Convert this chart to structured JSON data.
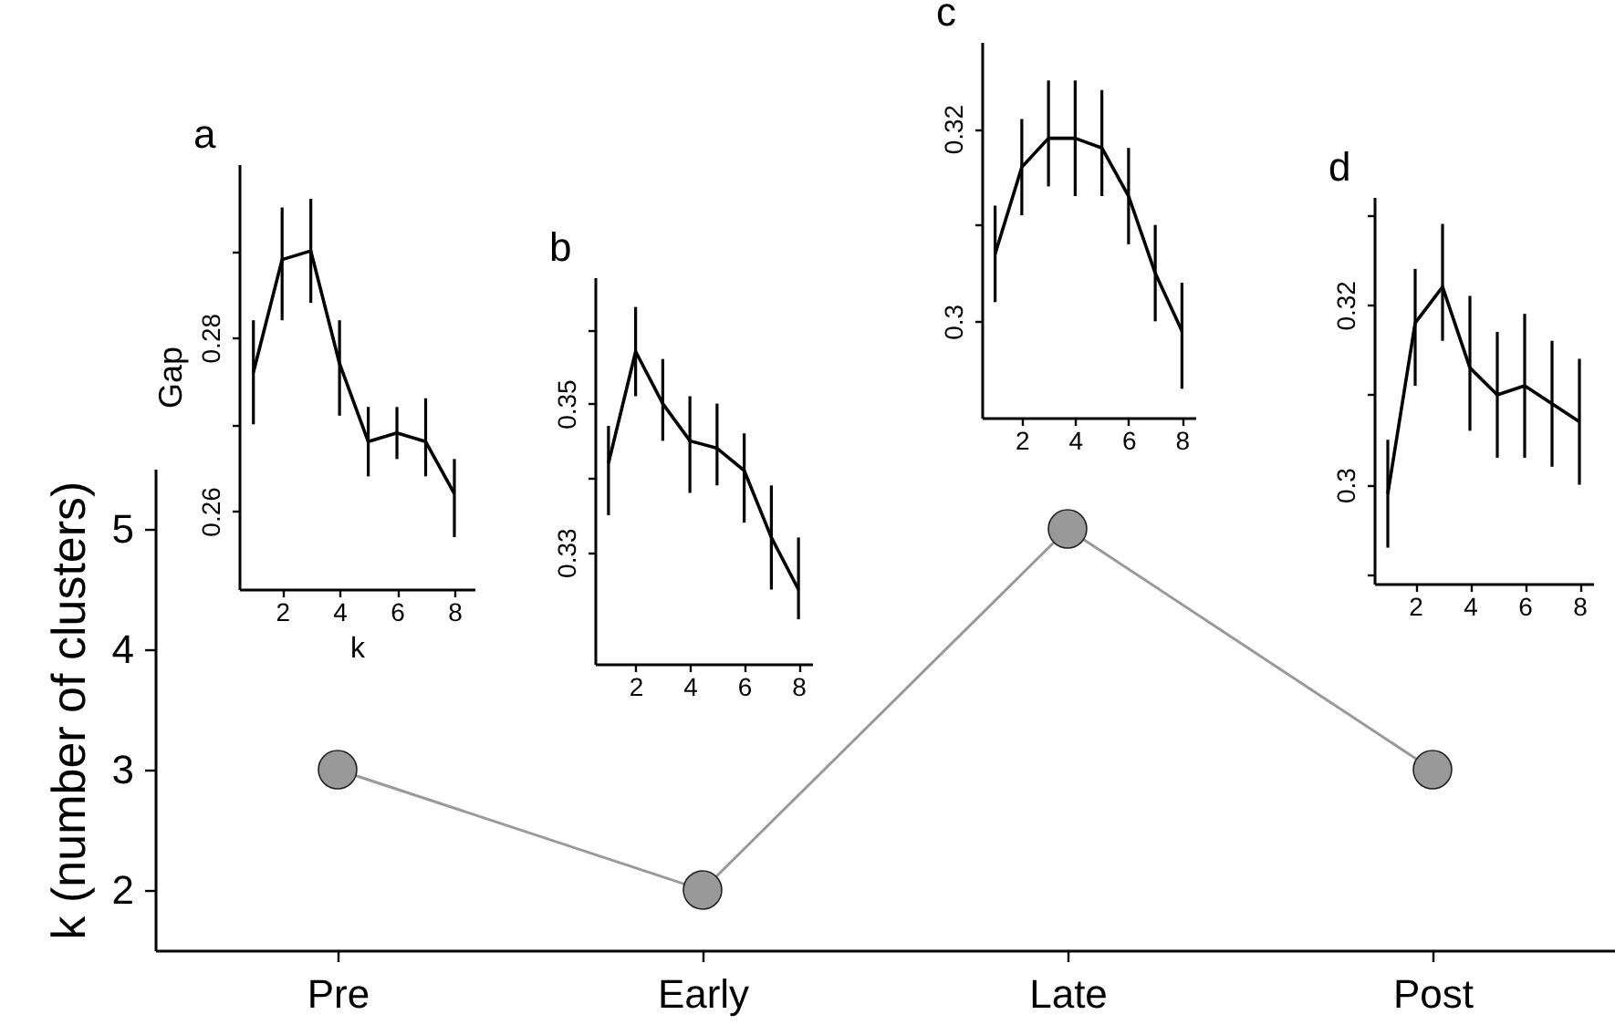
{
  "chart_data": [
    {
      "type": "line",
      "ylabel": "k (number of clusters)",
      "categories": [
        "Pre",
        "Early",
        "Late",
        "Post"
      ],
      "marker": "circle",
      "ylim": [
        1.5,
        5.5
      ],
      "yticks": [
        2,
        3,
        4,
        5
      ],
      "series": [
        {
          "color": "#999999",
          "values": [
            3,
            2,
            5,
            3
          ]
        }
      ]
    },
    {
      "type": "line",
      "title": "a",
      "xlabel": "k",
      "ylabel": "Gap",
      "x": [
        1,
        2,
        3,
        4,
        5,
        6,
        7,
        8
      ],
      "xlim": [
        0.5,
        8.7
      ],
      "xticks": [
        2,
        4,
        6,
        8
      ],
      "ylim": [
        0.251,
        0.3
      ],
      "yticks": [
        0.26,
        {
          "value": 0.27,
          "label": null
        },
        0.28,
        {
          "value": 0.29,
          "label": null
        }
      ],
      "series": [
        {
          "color": "#000000",
          "values": [
            0.276,
            0.289,
            0.29,
            0.277,
            0.268,
            0.269,
            0.268,
            0.262
          ],
          "errors": [
            [
              0.27,
              0.282
            ],
            [
              0.282,
              0.295
            ],
            [
              0.284,
              0.296
            ],
            [
              0.271,
              0.282
            ],
            [
              0.264,
              0.272
            ],
            [
              0.266,
              0.272
            ],
            [
              0.264,
              0.273
            ],
            [
              0.257,
              0.266
            ]
          ]
        }
      ]
    },
    {
      "type": "line",
      "title": "b",
      "x": [
        1,
        2,
        3,
        4,
        5,
        6,
        7,
        8
      ],
      "xlim": [
        0.5,
        8.5
      ],
      "xticks": [
        2,
        4,
        6,
        8
      ],
      "ylim": [
        0.315,
        0.367
      ],
      "yticks": [
        0.33,
        {
          "value": 0.34,
          "label": null
        },
        0.35,
        {
          "value": 0.36,
          "label": null
        }
      ],
      "series": [
        {
          "color": "#000000",
          "values": [
            0.342,
            0.357,
            0.35,
            0.345,
            0.344,
            0.341,
            0.332,
            0.325
          ],
          "errors": [
            [
              0.335,
              0.347
            ],
            [
              0.351,
              0.363
            ],
            [
              0.345,
              0.356
            ],
            [
              0.338,
              0.351
            ],
            [
              0.339,
              0.35
            ],
            [
              0.334,
              0.346
            ],
            [
              0.325,
              0.339
            ],
            [
              0.321,
              0.332
            ]
          ]
        }
      ]
    },
    {
      "type": "line",
      "title": "c",
      "x": [
        1,
        2,
        3,
        4,
        5,
        6,
        7,
        8
      ],
      "xlim": [
        0.5,
        8.5
      ],
      "xticks": [
        2,
        4,
        6,
        8
      ],
      "ylim": [
        0.29,
        0.329
      ],
      "yticks": [
        0.3,
        {
          "value": 0.31,
          "label": null
        },
        0.32
      ],
      "series": [
        {
          "color": "#000000",
          "values": [
            0.307,
            0.316,
            0.319,
            0.319,
            0.318,
            0.313,
            0.305,
            0.299
          ],
          "errors": [
            [
              0.302,
              0.312
            ],
            [
              0.311,
              0.321
            ],
            [
              0.314,
              0.325
            ],
            [
              0.313,
              0.325
            ],
            [
              0.313,
              0.324
            ],
            [
              0.308,
              0.318
            ],
            [
              0.3,
              0.31
            ],
            [
              0.293,
              0.304
            ]
          ]
        }
      ]
    },
    {
      "type": "line",
      "title": "d",
      "x": [
        1,
        2,
        3,
        4,
        5,
        6,
        7,
        8
      ],
      "xlim": [
        0.5,
        8.5
      ],
      "xticks": [
        2,
        4,
        6,
        8
      ],
      "ylim": [
        0.289,
        0.332
      ],
      "yticks": [
        {
          "value": 0.29,
          "label": null
        },
        0.3,
        {
          "value": 0.31,
          "label": null
        },
        0.32,
        {
          "value": 0.33,
          "label": null
        }
      ],
      "series": [
        {
          "color": "#000000",
          "values": [
            0.299,
            0.318,
            0.322,
            0.313,
            0.31,
            0.311,
            0.309,
            0.307
          ],
          "errors": [
            [
              0.293,
              0.305
            ],
            [
              0.311,
              0.324
            ],
            [
              0.316,
              0.329
            ],
            [
              0.306,
              0.321
            ],
            [
              0.303,
              0.317
            ],
            [
              0.303,
              0.319
            ],
            [
              0.302,
              0.316
            ],
            [
              0.3,
              0.314
            ]
          ]
        }
      ]
    }
  ]
}
